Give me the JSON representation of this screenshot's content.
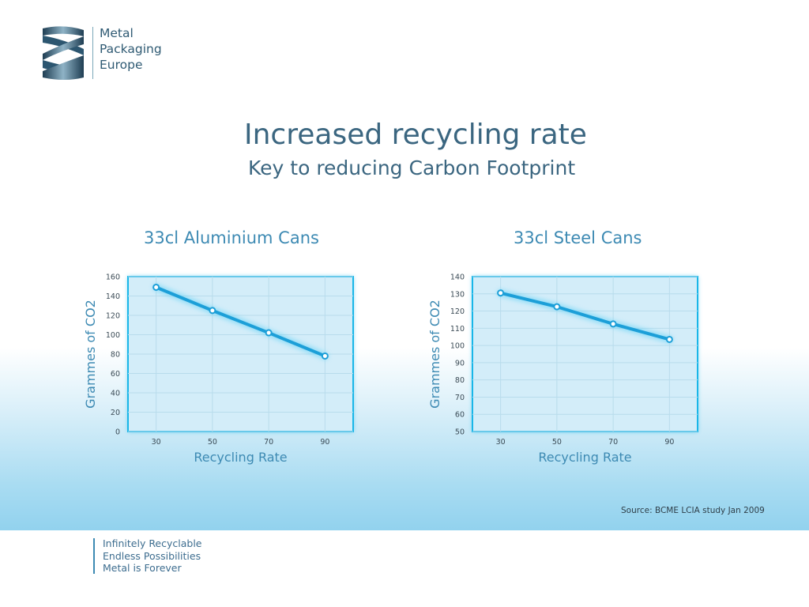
{
  "logo": {
    "lines": [
      "Metal",
      "Packaging",
      "Europe"
    ],
    "icon": "double-helix-logo-icon"
  },
  "title": "Increased recycling rate",
  "subtitle": "Key to reducing Carbon Footprint",
  "chart_data": [
    {
      "type": "line",
      "title": "33cl Aluminium Cans",
      "xlabel": "Recycling Rate",
      "ylabel": "Grammes of CO2",
      "x": [
        30,
        50,
        70,
        90
      ],
      "series": [
        {
          "values": [
            149,
            125,
            102,
            78
          ]
        }
      ],
      "ylim": [
        0,
        160
      ],
      "yticks": [
        0,
        20,
        40,
        60,
        80,
        100,
        120,
        140,
        160
      ],
      "xticks": [
        30,
        50,
        70,
        90
      ],
      "grid": true,
      "line_color": "#1c9fd8"
    },
    {
      "type": "line",
      "title": "33cl Steel Cans",
      "xlabel": "Recycling Rate",
      "ylabel": "Grammes of CO2",
      "x": [
        30,
        50,
        70,
        90
      ],
      "series": [
        {
          "values": [
            130.5,
            122.5,
            112.5,
            103.5
          ]
        }
      ],
      "ylim": [
        50,
        140
      ],
      "yticks": [
        50,
        60,
        70,
        80,
        90,
        100,
        110,
        120,
        130,
        140
      ],
      "xticks": [
        30,
        50,
        70,
        90
      ],
      "grid": true,
      "line_color": "#1c9fd8"
    }
  ],
  "source": "Source: BCME LCIA study Jan 2009",
  "footer": {
    "lines": [
      "Infinitely Recyclable",
      "Endless Possibilities",
      "Metal is Forever"
    ]
  },
  "colors": {
    "accent": "#3d8ab3",
    "title": "#3b6680",
    "plot_bg": "#d3edf9",
    "plot_border": "#19b6e8"
  }
}
